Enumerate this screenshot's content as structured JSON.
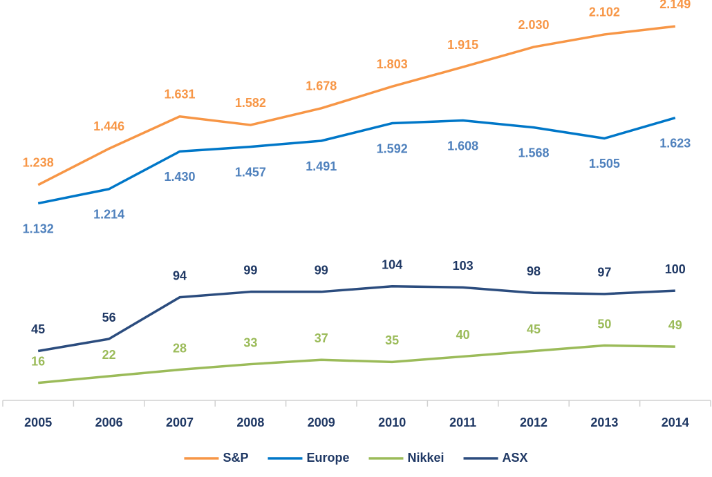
{
  "chart_data": {
    "type": "line",
    "categories": [
      "2005",
      "2006",
      "2007",
      "2008",
      "2009",
      "2010",
      "2011",
      "2012",
      "2013",
      "2014"
    ],
    "ylim": [
      0,
      2300
    ],
    "y2lim": [
      0,
      365
    ],
    "series": [
      {
        "name": "S&P",
        "color": "#f79646",
        "label_color": "#f79646",
        "label_position": "above",
        "values": [
          1238,
          1446,
          1631,
          1582,
          1678,
          1803,
          1915,
          2030,
          2102,
          2149
        ],
        "value_labels": [
          "1.238",
          "1.446",
          "1.631",
          "1.582",
          "1.678",
          "1.803",
          "1.915",
          "2.030",
          "2.102",
          "2.149"
        ]
      },
      {
        "name": "Europe",
        "color": "#0077c8",
        "label_color": "#4f81bd",
        "label_position": "below",
        "values": [
          1132,
          1214,
          1430,
          1457,
          1491,
          1592,
          1608,
          1568,
          1505,
          1623
        ],
        "value_labels": [
          "1.132",
          "1.214",
          "1.430",
          "1.457",
          "1.491",
          "1.592",
          "1.608",
          "1.568",
          "1.505",
          "1.623"
        ]
      },
      {
        "name": "Nikkei",
        "color": "#9bbb59",
        "label_color": "#9bbb59",
        "label_position": "above",
        "axis": "y2",
        "values": [
          16,
          22,
          28,
          33,
          37,
          35,
          40,
          45,
          50,
          49
        ]
      },
      {
        "name": "ASX",
        "color": "#2b4c7e",
        "label_color": "#1f3864",
        "label_position": "above",
        "axis": "y2",
        "values": [
          45,
          56,
          94,
          99,
          99,
          104,
          103,
          98,
          97,
          100
        ]
      }
    ]
  }
}
